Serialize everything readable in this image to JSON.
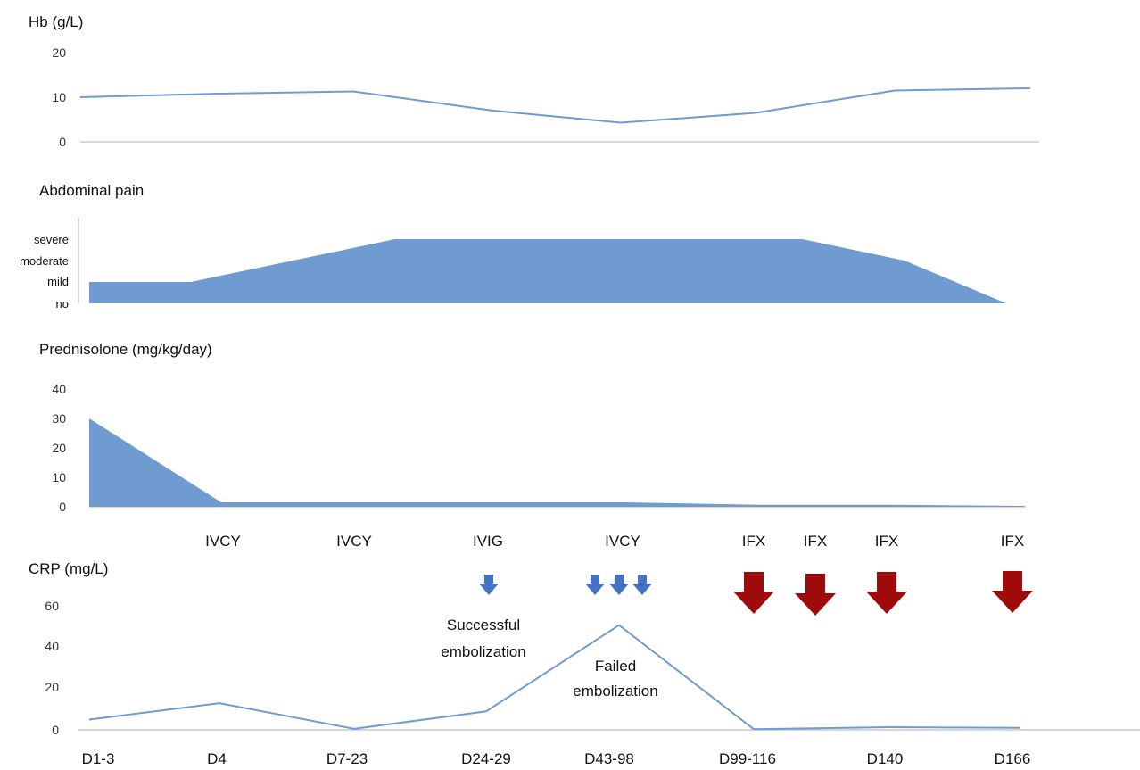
{
  "colors": {
    "line": "#6f9bd1",
    "fill": "#6f9bd1",
    "axis": "#bfbfbf",
    "blue_arrow": "#4472c4",
    "red_arrow": "#9e0b0b"
  },
  "chart_data": [
    {
      "type": "line",
      "title": "Hb (g/L)",
      "x": [
        "D1-3",
        "D4",
        "D7-23",
        "D24-29",
        "D43-98",
        "D99-116",
        "D140",
        "D166"
      ],
      "values": [
        10,
        10.8,
        11.3,
        7,
        4.3,
        6.5,
        11.5,
        12
      ],
      "ylim": [
        0,
        20
      ],
      "yticks": [
        "0",
        "10",
        "20"
      ]
    },
    {
      "type": "area",
      "title": "Abdominal pain",
      "ycategories": [
        "no",
        "mild",
        "moderate",
        "severe"
      ],
      "points": [
        [
          0,
          1
        ],
        [
          1,
          1
        ],
        [
          2,
          2
        ],
        [
          3,
          3
        ],
        [
          7,
          3
        ],
        [
          8,
          2
        ],
        [
          9,
          0
        ]
      ],
      "xmax": 9
    },
    {
      "type": "area",
      "title": "Prednisolone (mg/kg/day)",
      "x": [
        "D1-3",
        "D4",
        "D7-23",
        "D24-29",
        "D43-98",
        "D99-116",
        "D140",
        "D166"
      ],
      "values": [
        30,
        1.5,
        1.5,
        1.5,
        1.5,
        0.7,
        0.7,
        0.3
      ],
      "ylim": [
        0,
        40
      ],
      "yticks": [
        "0",
        "10",
        "20",
        "30",
        "40"
      ]
    },
    {
      "type": "line",
      "title": "CRP (mg/L)",
      "x": [
        "D1-3",
        "D4",
        "D7-23",
        "D24-29",
        "D43-98",
        "D99-116",
        "D140",
        "D166"
      ],
      "values": [
        5,
        13,
        0.5,
        9,
        51,
        0.3,
        1.3,
        1
      ],
      "ylim": [
        0,
        60
      ],
      "yticks": [
        "0",
        "20",
        "40",
        "60"
      ]
    }
  ],
  "events": [
    "IVCY",
    "IVCY",
    "IVIG",
    "IVCY",
    "IFX",
    "IFX",
    "IFX",
    "IFX"
  ],
  "annotations": {
    "successful_l1": "Successful",
    "successful_l2": "embolization",
    "failed_l1": "Failed",
    "failed_l2": "embolization"
  },
  "x_labels": [
    "D1-3",
    "D4",
    "D7-23",
    "D24-29",
    "D43-98",
    "D99-116",
    "D140",
    "D166"
  ]
}
